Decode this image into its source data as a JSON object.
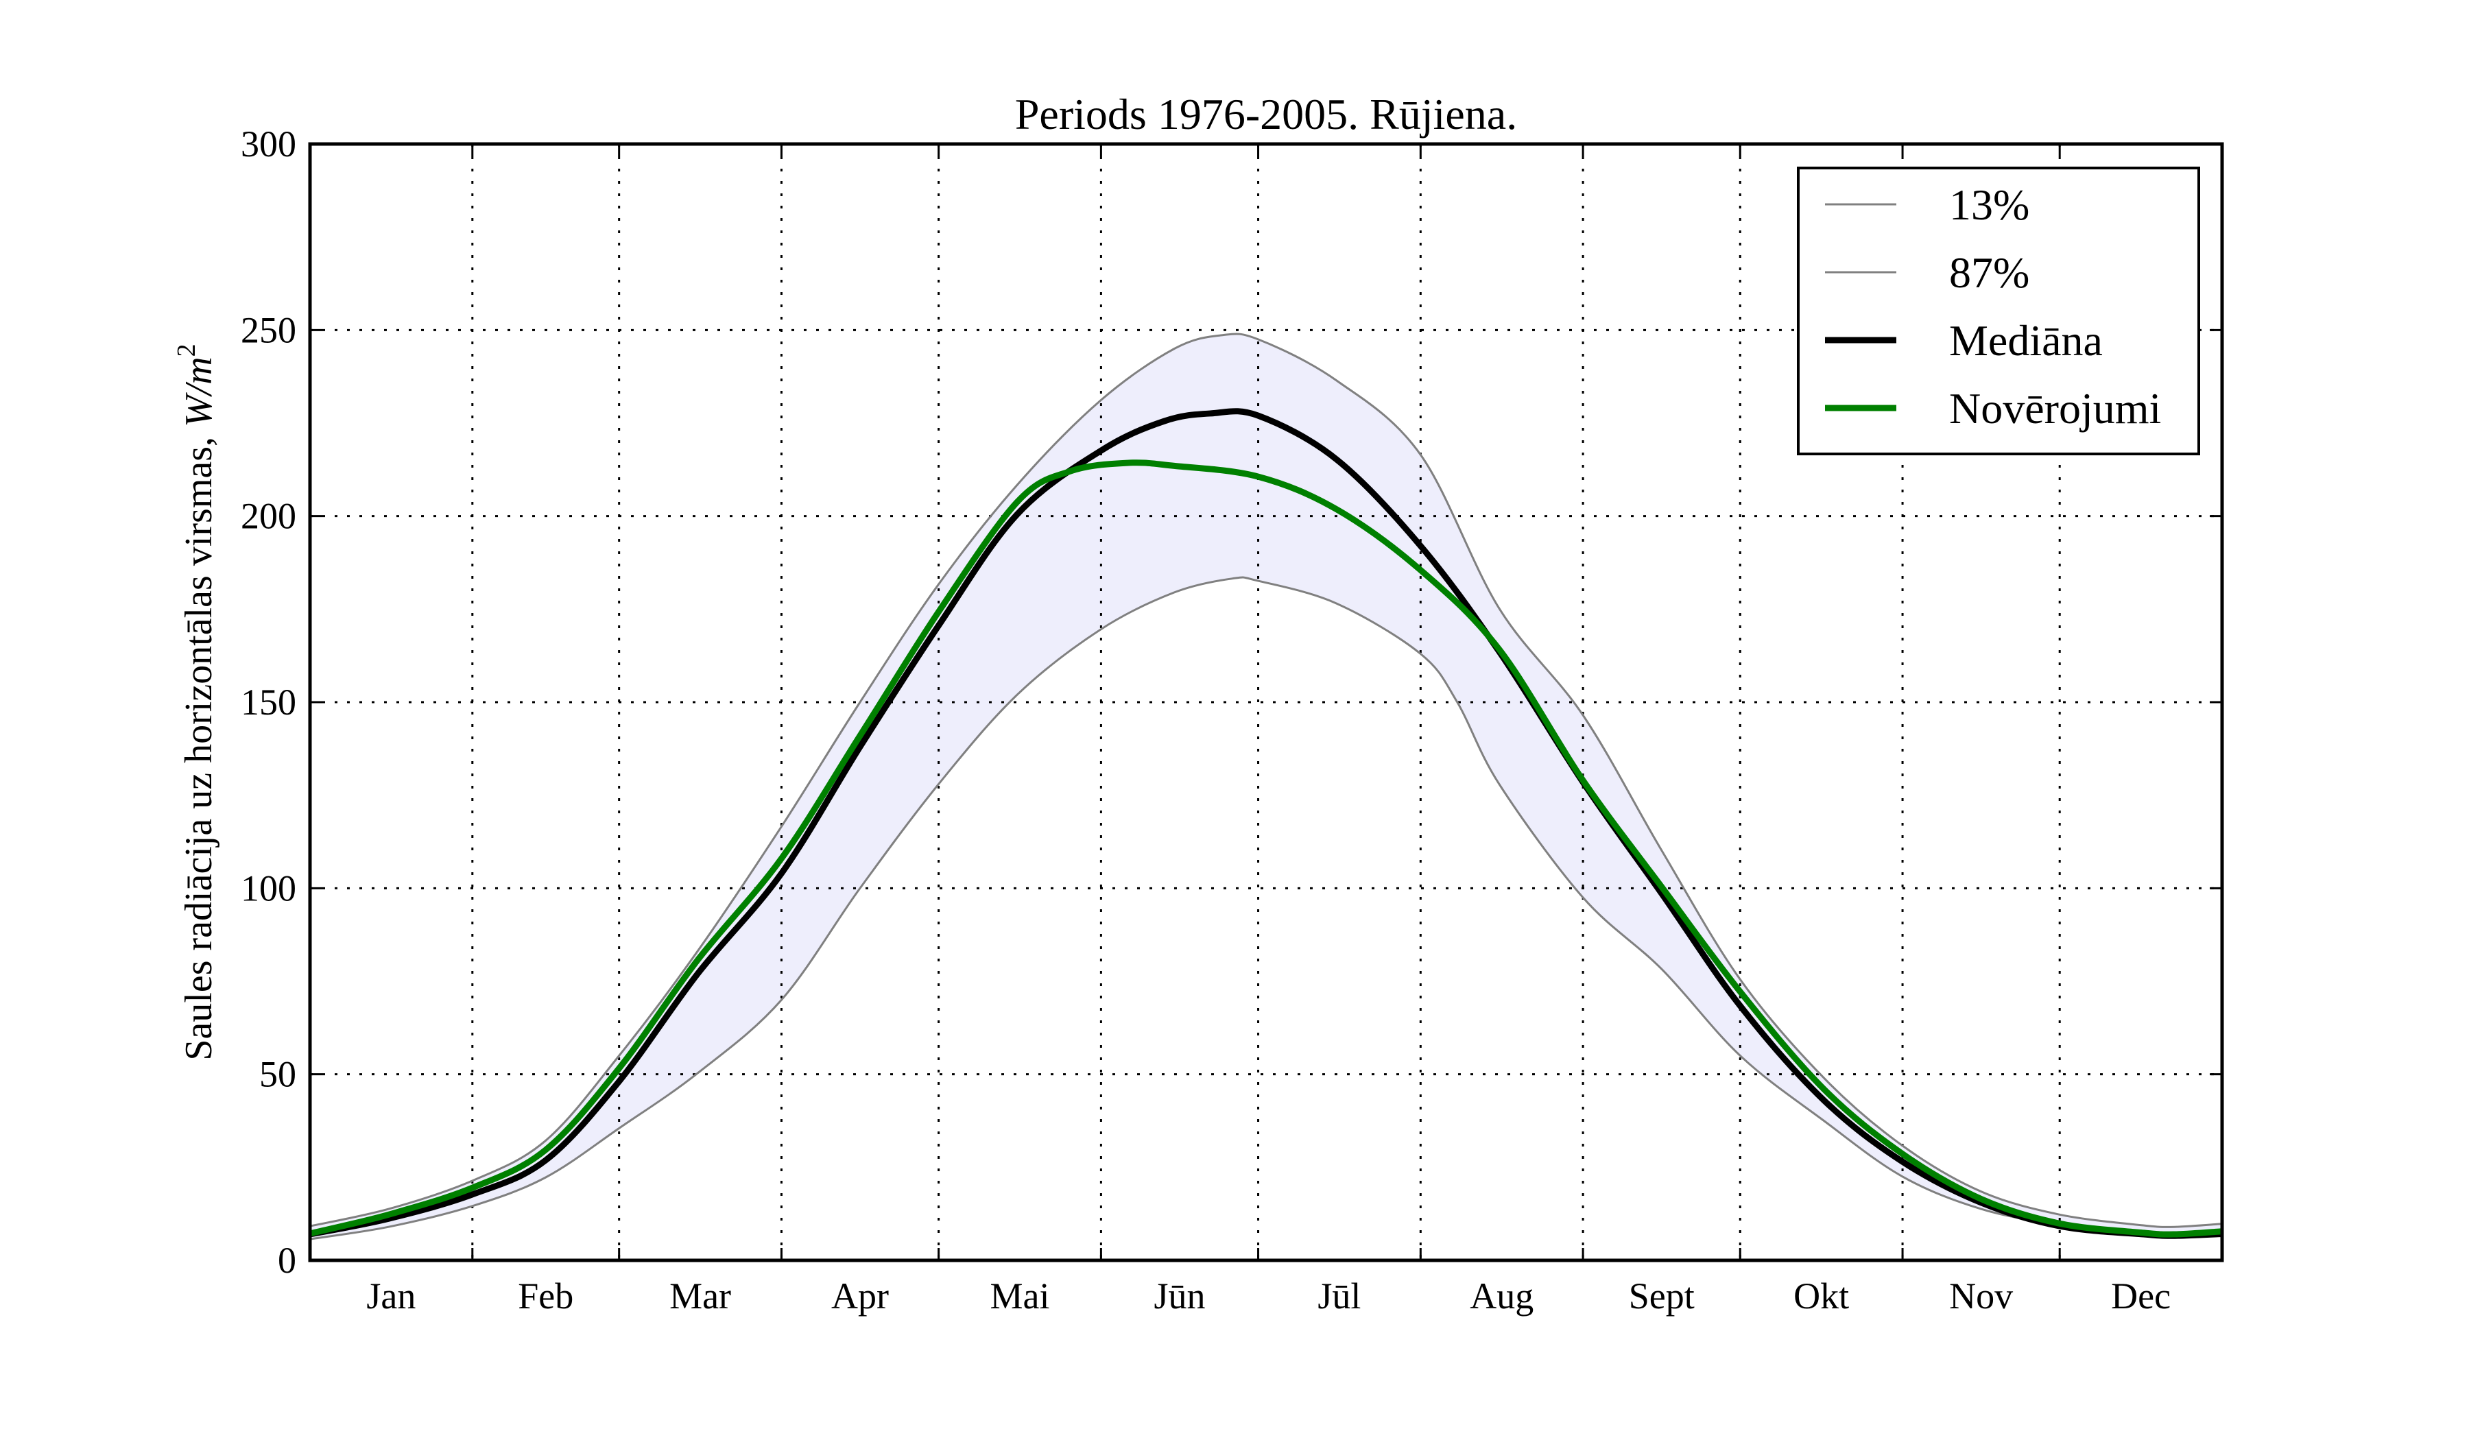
{
  "chart_data": {
    "type": "line",
    "title": "Periods 1976-2005. Rūjiena.",
    "xlabel": "",
    "ylabel": {
      "text": "Saules radiācija uz horizontālas virsmas, ",
      "unit_base": "W/m",
      "unit_exp": "2"
    },
    "x_unit": "day of year",
    "xlim": [
      0,
      365
    ],
    "ylim": [
      0,
      300
    ],
    "yticks": [
      0,
      50,
      100,
      150,
      200,
      250,
      300
    ],
    "ytick_labels": [
      "0",
      "50",
      "100",
      "150",
      "200",
      "250",
      "300"
    ],
    "month_boundaries": [
      0,
      31,
      59,
      90,
      120,
      151,
      181,
      212,
      243,
      273,
      304,
      334,
      365
    ],
    "xtick_labels": [
      "Jan",
      "Feb",
      "Mar",
      "Apr",
      "Mai",
      "Jūn",
      "Jūl",
      "Aug",
      "Sept",
      "Okt",
      "Nov",
      "Dec"
    ],
    "grid": true,
    "legend_position": "top-right",
    "band_fill": "#eeeefc",
    "series": [
      {
        "name": "13%",
        "color": "#808080",
        "width": 3,
        "x": [
          0,
          15,
          31,
          45,
          59,
          74,
          90,
          105,
          120,
          135,
          151,
          165,
          176,
          181,
          196,
          212,
          219,
          227,
          243,
          258,
          273,
          289,
          304,
          319,
          334,
          350,
          356,
          365
        ],
        "y": [
          5.7,
          9.0,
          14.6,
          22.3,
          35.5,
          50.3,
          70.0,
          100.0,
          128.0,
          152.0,
          169.6,
          179.5,
          183.2,
          182.6,
          176.5,
          163.0,
          150.0,
          128.0,
          97.5,
          78.3,
          55.0,
          37.5,
          22.5,
          13.8,
          9.6,
          7.0,
          6.3,
          6.7
        ]
      },
      {
        "name": "87%",
        "color": "#808080",
        "width": 3,
        "x": [
          0,
          15,
          31,
          45,
          59,
          74,
          90,
          105,
          120,
          135,
          151,
          165,
          174,
          181,
          196,
          212,
          227,
          243,
          258,
          273,
          289,
          304,
          319,
          334,
          350,
          356,
          365
        ],
        "y": [
          9.2,
          13.8,
          21.4,
          32.2,
          55.0,
          83.1,
          116.6,
          150.0,
          181.7,
          208.4,
          231.2,
          245.0,
          248.6,
          247.5,
          236.4,
          216.5,
          175.2,
          146.5,
          110.2,
          75.5,
          49.0,
          30.8,
          18.5,
          12.3,
          9.4,
          9.0,
          9.8
        ]
      },
      {
        "name": "Mediāna",
        "color": "#000000",
        "width": 9,
        "x": [
          0,
          15,
          31,
          45,
          59,
          74,
          90,
          105,
          120,
          135,
          151,
          163,
          172,
          181,
          196,
          212,
          227,
          243,
          258,
          273,
          289,
          304,
          319,
          334,
          350,
          356,
          365
        ],
        "y": [
          7.0,
          11.2,
          17.7,
          26.9,
          48.1,
          77.0,
          104.0,
          138.0,
          170.6,
          200.5,
          217.6,
          225.5,
          227.6,
          227.0,
          215.2,
          192.0,
          163.6,
          128.5,
          98.6,
          68.4,
          43.0,
          26.5,
          15.5,
          9.2,
          7.0,
          6.6,
          7.1
        ]
      },
      {
        "name": "Novērojumi",
        "color": "#008000",
        "width": 9,
        "x": [
          0,
          15,
          31,
          45,
          59,
          74,
          90,
          105,
          120,
          135,
          145,
          156,
          165,
          181,
          196,
          212,
          227,
          243,
          258,
          273,
          289,
          304,
          319,
          334,
          350,
          356,
          365
        ],
        "y": [
          7.2,
          12.3,
          19.5,
          29.7,
          51.6,
          80.7,
          108.0,
          141.0,
          174.3,
          203.8,
          212.0,
          214.3,
          213.5,
          210.6,
          201.8,
          185.5,
          164.2,
          129.0,
          100.4,
          72.2,
          46.0,
          28.6,
          16.5,
          9.9,
          7.4,
          7.0,
          7.8
        ]
      }
    ]
  }
}
